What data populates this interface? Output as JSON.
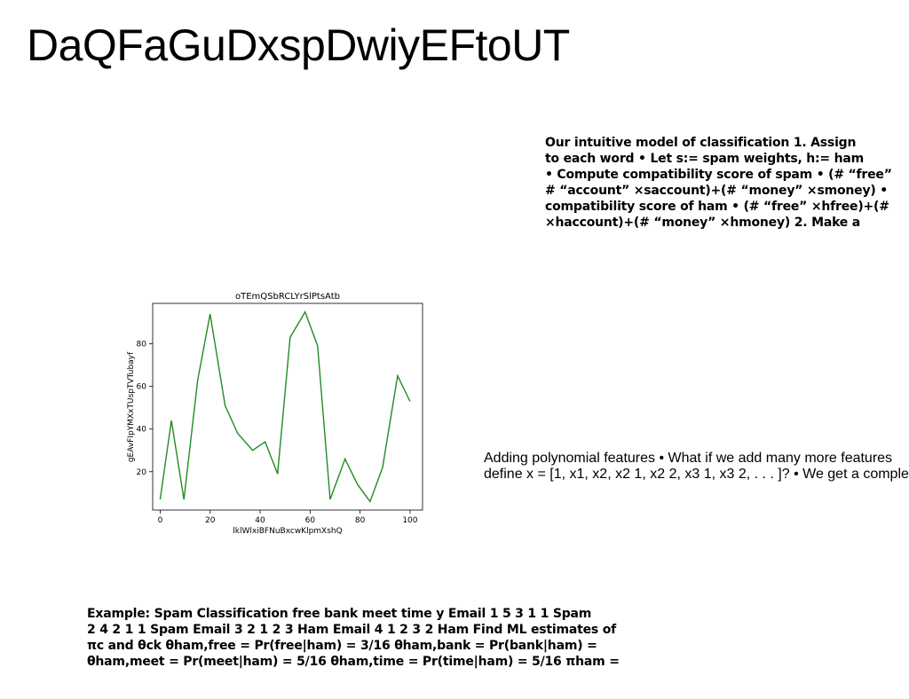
{
  "slide": {
    "title": "DaQFaGuDxspDwiyEFtoUT",
    "block1_lines": [
      "Our intuitive model of classification 1. Assign",
      "to each word • Let s:= spam weights, h:= ham",
      "• Compute compatibility score of spam • (# “free”",
      "# “account” ×saccount)+(# “money” ×smoney) •",
      "compatibility score of ham • (# “free” ×hfree)+(#",
      "×haccount)+(# “money” ×hmoney) 2. Make a"
    ],
    "block2_lines": [
      "Adding polynomial features • What if we add many more features",
      "define x = [1, x1, x2, x2 1, x2 2, x3 1, x3 2, . . . ]? • We get a complex"
    ],
    "block3_lines": [
      "Example: Spam Classification free bank meet time y Email 1 5 3 1 1 Spam",
      "2 4 2 1 1 Spam Email 3 2 1 2 3 Ham Email 4 1 2 3 2 Ham Find ML estimates of",
      "πc and θck θham,free = Pr(free|ham) = 3/16 θham,bank = Pr(bank|ham) =",
      "θham,meet = Pr(meet|ham) = 5/16 θham,time = Pr(time|ham) = 5/16 πham ="
    ]
  },
  "chart_data": {
    "type": "line",
    "title": "oTEmQSbRCLYrSlPtsAtb",
    "xlabel": "lklWlxiBFNuBxcwKlpmXshQ",
    "ylabel": "gEAvFIpYMXxTUspTVTubayf",
    "xlim": [
      -3,
      105
    ],
    "ylim": [
      2,
      99
    ],
    "xticks": [
      0,
      20,
      40,
      60,
      80,
      100
    ],
    "yticks": [
      20,
      40,
      60,
      80
    ],
    "line_color": "#228b22",
    "series": [
      {
        "x": [
          0,
          4.5,
          9.5,
          15,
          20,
          26,
          31,
          37,
          42,
          47,
          52,
          58,
          63,
          68,
          74,
          79,
          84,
          89,
          95,
          100
        ],
        "y": [
          7,
          44,
          7,
          63,
          94,
          51,
          38,
          30,
          34,
          19,
          83,
          95,
          79,
          7,
          26,
          14,
          6,
          22,
          65,
          53
        ]
      }
    ]
  }
}
